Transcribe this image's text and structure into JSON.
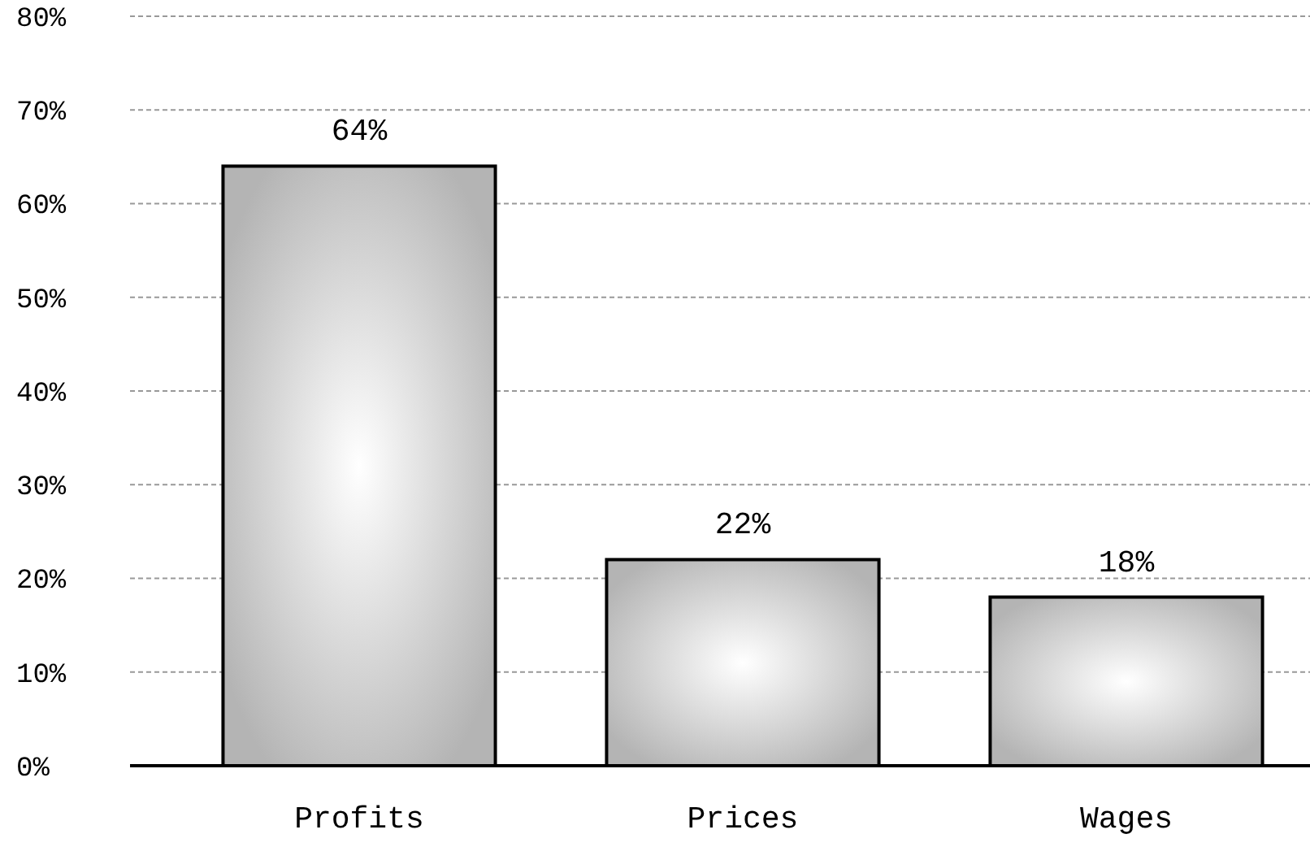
{
  "chart_data": {
    "type": "bar",
    "categories": [
      "Profits",
      "Prices",
      "Wages"
    ],
    "values": [
      64,
      22,
      18
    ],
    "value_labels": [
      "64%",
      "22%",
      "18%"
    ],
    "color": "#b4b4b4",
    "ylim": [
      0,
      80
    ],
    "yticks": [
      {
        "value": 0,
        "label": "0%"
      },
      {
        "value": 10,
        "label": "10%"
      },
      {
        "value": 20,
        "label": "20%"
      },
      {
        "value": 30,
        "label": "30%"
      },
      {
        "value": 40,
        "label": "40%"
      },
      {
        "value": 50,
        "label": "50%"
      },
      {
        "value": 60,
        "label": "60%"
      },
      {
        "value": 70,
        "label": "70%"
      },
      {
        "value": 80,
        "label": "80%"
      }
    ],
    "grid": "y"
  }
}
